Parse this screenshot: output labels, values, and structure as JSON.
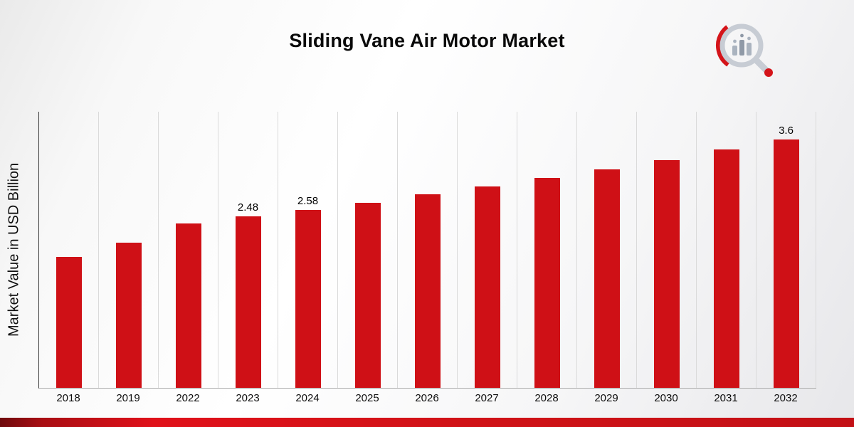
{
  "title": "Sliding Vane Air Motor Market",
  "y_axis_label": "Market Value in USD Billion",
  "logo": {
    "name": "market-research-magnifier-logo"
  },
  "colors": {
    "bar": "#cf1016",
    "accent_strip": "#d01217",
    "gridline": "#dadada"
  },
  "chart_data": {
    "type": "bar",
    "title": "Sliding Vane Air Motor Market",
    "xlabel": "",
    "ylabel": "Market Value in USD Billion",
    "categories": [
      "2018",
      "2019",
      "2022",
      "2023",
      "2024",
      "2025",
      "2026",
      "2027",
      "2028",
      "2029",
      "2030",
      "2031",
      "2032"
    ],
    "values": [
      1.9,
      2.1,
      2.38,
      2.48,
      2.58,
      2.68,
      2.8,
      2.92,
      3.04,
      3.17,
      3.3,
      3.45,
      3.6
    ],
    "labels": [
      "",
      "",
      "",
      "2.48",
      "2.58",
      "",
      "",
      "",
      "",
      "",
      "",
      "",
      "3.6"
    ],
    "unit": "USD Billion",
    "ylim": [
      0,
      4
    ],
    "grid": "vertical",
    "legend": "none",
    "bar_color": "#cf1016"
  }
}
